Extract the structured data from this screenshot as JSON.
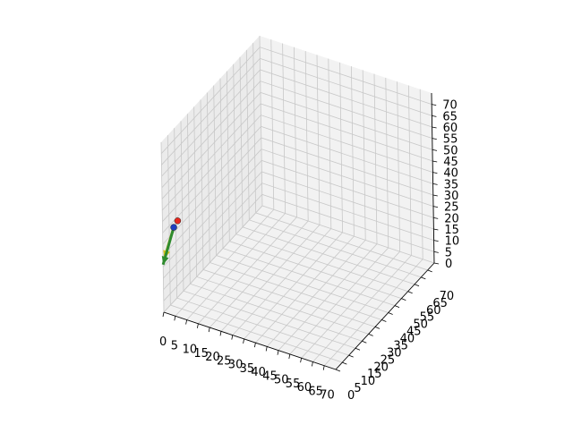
{
  "chart_data": {
    "type": "3d-scatter-quiver",
    "title": "",
    "xlabel": "",
    "ylabel": "",
    "zlabel": "",
    "x_ticks": [
      0,
      5,
      10,
      15,
      20,
      25,
      30,
      35,
      40,
      45,
      50,
      55,
      60,
      65,
      70
    ],
    "y_ticks": [
      0,
      5,
      10,
      15,
      20,
      25,
      30,
      35,
      40,
      45,
      50,
      55,
      60,
      65,
      70
    ],
    "z_ticks": [
      0,
      5,
      10,
      15,
      20,
      25,
      30,
      35,
      40,
      45,
      50,
      55,
      60,
      65,
      70
    ],
    "xlim": [
      0,
      75
    ],
    "ylim": [
      0,
      75
    ],
    "zlim": [
      0,
      75
    ],
    "grid": true,
    "pane_color": "#f2f2f2",
    "points": [
      {
        "x": 2,
        "y": 5,
        "z": 35,
        "color": "#1f3fbf"
      },
      {
        "x": 2,
        "y": 8,
        "z": 36,
        "color": "#e8281e"
      }
    ],
    "arrows": [
      {
        "x": 2,
        "y": 5,
        "z": 35,
        "dx": -2,
        "dy": -4,
        "dz": -12,
        "color": "#d4c21a"
      },
      {
        "x": 2,
        "y": 5,
        "z": 35,
        "dx": -2,
        "dy": -5,
        "dz": -14,
        "color": "#2e8b2e"
      }
    ]
  }
}
